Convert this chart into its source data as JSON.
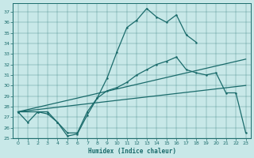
{
  "bg_color": "#c8e8e8",
  "line_color": "#1a6b6b",
  "xlabel": "Humidex (Indice chaleur)",
  "xlim": [
    -0.5,
    23.5
  ],
  "ylim": [
    25,
    37.8
  ],
  "yticks": [
    25,
    26,
    27,
    28,
    29,
    30,
    31,
    32,
    33,
    34,
    35,
    36,
    37
  ],
  "xticks": [
    0,
    1,
    2,
    3,
    4,
    5,
    6,
    7,
    8,
    9,
    10,
    11,
    12,
    13,
    14,
    15,
    16,
    17,
    18,
    19,
    20,
    21,
    22,
    23
  ],
  "line1_x": [
    0,
    1,
    2,
    3,
    4,
    5,
    6,
    7,
    8,
    9,
    10,
    11,
    12,
    13,
    14,
    15,
    16,
    17,
    18
  ],
  "line1_y": [
    27.5,
    26.5,
    27.5,
    27.5,
    26.5,
    25.2,
    25.4,
    27.2,
    28.8,
    30.7,
    33.2,
    35.5,
    36.2,
    37.3,
    36.5,
    36.0,
    36.7,
    34.8,
    34.1
  ],
  "line2_x": [
    0,
    2,
    3,
    4,
    5,
    6,
    7,
    8,
    9,
    10,
    11,
    12,
    13,
    14,
    15,
    16,
    17,
    18,
    19,
    20,
    21,
    22,
    23
  ],
  "line2_y": [
    27.5,
    27.5,
    27.3,
    26.5,
    25.5,
    25.5,
    27.5,
    28.8,
    29.5,
    29.8,
    30.3,
    31.0,
    31.5,
    32.0,
    32.3,
    32.7,
    31.5,
    31.2,
    31.0,
    31.2,
    29.3,
    29.3,
    25.5
  ],
  "line3_x": [
    0,
    23
  ],
  "line3_y": [
    27.5,
    32.5
  ],
  "line4_x": [
    0,
    23
  ],
  "line4_y": [
    27.5,
    30.0
  ]
}
